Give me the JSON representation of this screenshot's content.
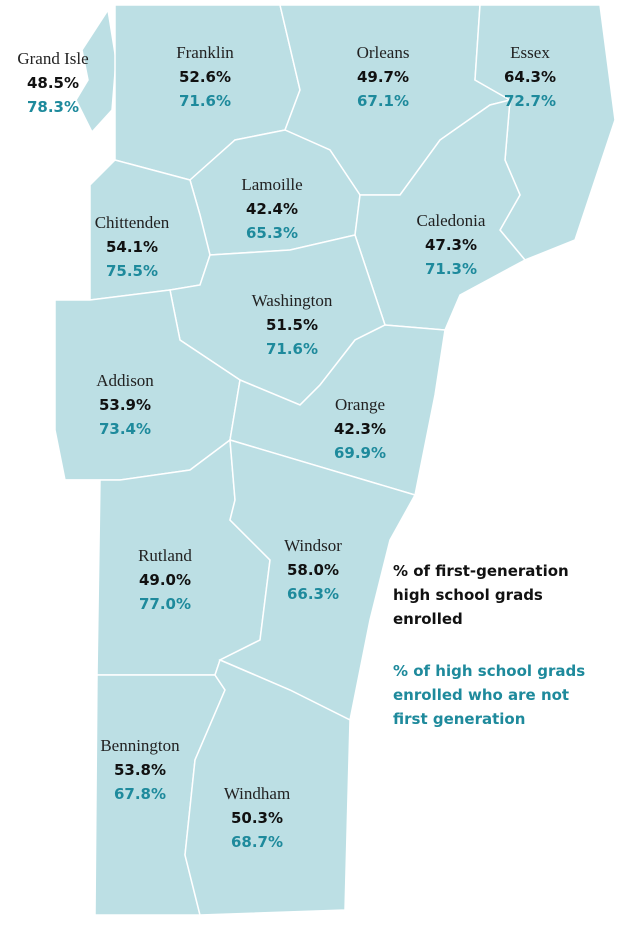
{
  "counties": [
    {
      "name": "Grand Isle",
      "first_generation": "48.5%",
      "not_first_generation": "78.3%"
    },
    {
      "name": "Franklin",
      "first_generation": "52.6%",
      "not_first_generation": "71.6%"
    },
    {
      "name": "Orleans",
      "first_generation": "49.7%",
      "not_first_generation": "67.1%"
    },
    {
      "name": "Essex",
      "first_generation": "64.3%",
      "not_first_generation": "72.7%"
    },
    {
      "name": "Lamoille",
      "first_generation": "42.4%",
      "not_first_generation": "65.3%"
    },
    {
      "name": "Chittenden",
      "first_generation": "54.1%",
      "not_first_generation": "75.5%"
    },
    {
      "name": "Caledonia",
      "first_generation": "47.3%",
      "not_first_generation": "71.3%"
    },
    {
      "name": "Washington",
      "first_generation": "51.5%",
      "not_first_generation": "71.6%"
    },
    {
      "name": "Addison",
      "first_generation": "53.9%",
      "not_first_generation": "73.4%"
    },
    {
      "name": "Orange",
      "first_generation": "42.3%",
      "not_first_generation": "69.9%"
    },
    {
      "name": "Rutland",
      "first_generation": "49.0%",
      "not_first_generation": "77.0%"
    },
    {
      "name": "Windsor",
      "first_generation": "58.0%",
      "not_first_generation": "66.3%"
    },
    {
      "name": "Bennington",
      "first_generation": "53.8%",
      "not_first_generation": "67.8%"
    },
    {
      "name": "Windham",
      "first_generation": "50.3%",
      "not_first_generation": "68.7%"
    }
  ],
  "legend": {
    "first_generation": [
      "% of first-generation",
      "high school grads",
      "enrolled"
    ],
    "not_first_generation": [
      "% of high school grads",
      "enrolled who are not",
      "first generation"
    ]
  }
}
